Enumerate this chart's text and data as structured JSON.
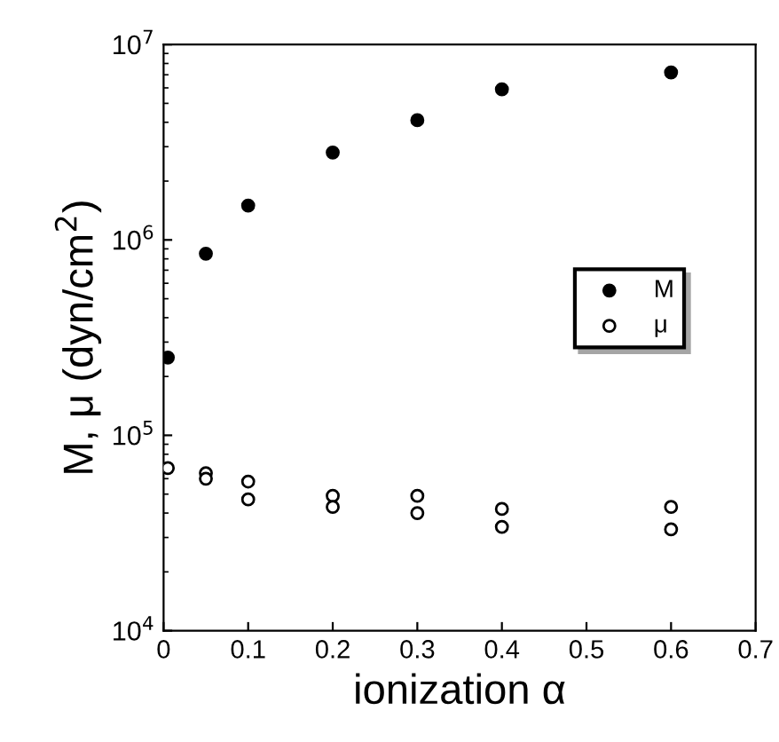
{
  "chart_data": {
    "type": "scatter",
    "xlabel": "ionization α",
    "ylabel": "M, μ (dyn/cm$^{2}$)",
    "log": "y",
    "xlim": [
      0,
      0.7
    ],
    "xticks": [
      0,
      0.1,
      0.2,
      0.3,
      0.4,
      0.5,
      0.6,
      0.7
    ],
    "ylim": [
      10000,
      10000000
    ],
    "yticks": [
      {
        "value": 10000,
        "label": "10$^{4}$"
      },
      {
        "value": 100000,
        "label": "10$^{5}$"
      },
      {
        "value": 1000000,
        "label": "10$^{6}$"
      },
      {
        "value": 10000000,
        "label": "10$^{7}$"
      }
    ],
    "legend": "right",
    "grid": false,
    "series": [
      {
        "name": "M",
        "color": "#000000",
        "marker": "circle",
        "x": [
          0.005,
          0.05,
          0.1,
          0.2,
          0.3,
          0.4,
          0.6
        ],
        "values": [
          250000,
          850000,
          1500000,
          2800000,
          4100000,
          5900000,
          7200000
        ]
      },
      {
        "name": "μ",
        "color": "#000000",
        "marker": "circle",
        "x": [
          0.005,
          0.05,
          0.05,
          0.1,
          0.1,
          0.2,
          0.2,
          0.3,
          0.3,
          0.4,
          0.4,
          0.6,
          0.6
        ],
        "values": [
          68000,
          64000,
          60000,
          58000,
          47000,
          49000,
          43000,
          49000,
          40000,
          42000,
          34000,
          43000,
          33000
        ]
      }
    ]
  }
}
